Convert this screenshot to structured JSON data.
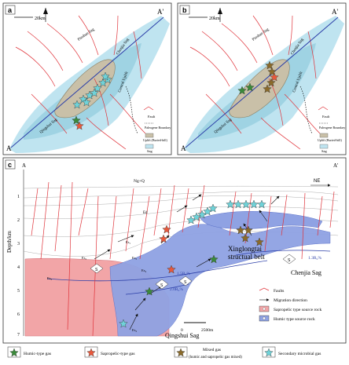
{
  "panels": {
    "a": {
      "letter": "a",
      "scale": "20km",
      "endpoint_start": "A",
      "endpoint_end": "A'",
      "sags": [
        "Pinshan Sag",
        "Chenjia Sag",
        "Qingshui Sag"
      ],
      "uplift": "Central Uplift",
      "belt": "Xinglongtai structural belt",
      "legend": [
        {
          "label": "Fault"
        },
        {
          "label": "Paleogene Boundary"
        },
        {
          "label": "Uplift (Buried-hill)"
        },
        {
          "label": "Sag"
        }
      ]
    },
    "b": {
      "letter": "b",
      "scale": "20km",
      "endpoint_start": "A",
      "endpoint_end": "A'",
      "sags": [
        "Pinshan Sag",
        "Chenjia Sag",
        "Qingshui Sag"
      ],
      "uplift": "Central Uplift",
      "legend": [
        {
          "label": "Fault"
        },
        {
          "label": "Paleogene Boundary"
        },
        {
          "label": "Uplift (Buried-hill)"
        },
        {
          "label": "Sag"
        }
      ]
    },
    "c": {
      "letter": "c",
      "endpoint_start": "A",
      "endpoint_end": "A'",
      "direction": "NE",
      "y_axis_label": "Depth/km",
      "y_ticks": [
        "1",
        "2",
        "3",
        "4",
        "5",
        "6",
        "7"
      ],
      "strata": [
        "Ng+Q",
        "Ed",
        "Es₁",
        "Es₂",
        "Es₃",
        "Es₄",
        "Es₃",
        "Es₄"
      ],
      "ro_labels": [
        "1.5R₀%",
        "2.0R₀%",
        "1.3R₀%"
      ],
      "place_labels": [
        "Xinglongtai",
        "structual belt",
        "Chenjia Sag",
        "Qingshui Sag"
      ],
      "scale_0": "0",
      "scale_end": "2500m",
      "legend": [
        {
          "label": "Faults"
        },
        {
          "label": "Migration direction"
        },
        {
          "label": "Sapropelic type source rock"
        },
        {
          "label": "Humic type source rock"
        }
      ],
      "source_marker": "S"
    }
  },
  "bottom_legend": [
    {
      "label": "Humic-type gas",
      "color": "#3a8a3a"
    },
    {
      "label": "Sapropelic-type gas",
      "color": "#e8583b"
    },
    {
      "label": "Mixed gas",
      "sub": "(humic and sapropelic gas mixed)",
      "color": "#8a6a2a"
    },
    {
      "label": "Secondary microbial gas",
      "color": "#6fd2d8"
    }
  ],
  "colors": {
    "sag": "#bfe4f0",
    "sag_inner": "#9fd3e3",
    "uplift": "#c9c0a8",
    "fault": "#e0333a",
    "section_line": "#2c3fa8",
    "sapropelic": "#f2a5a7",
    "humic": "#8fa2e3"
  }
}
